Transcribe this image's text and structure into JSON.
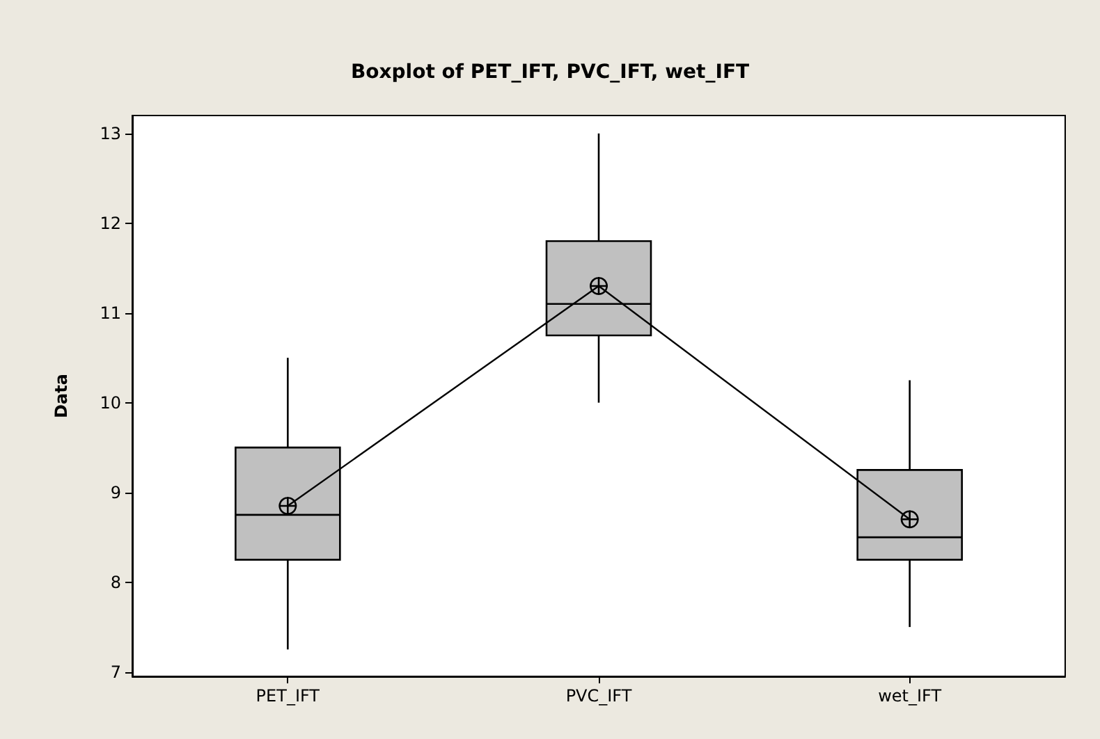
{
  "chart_data": {
    "type": "box",
    "title": "Boxplot of PET_IFT, PVC_IFT, wet_IFT",
    "ylabel": "Data",
    "categories": [
      "PET_IFT",
      "PVC_IFT",
      "wet_IFT"
    ],
    "color": "#c0c0c0",
    "boxes": [
      {
        "low": 7.25,
        "q1": 8.25,
        "median": 8.75,
        "q3": 9.5,
        "high": 10.5
      },
      {
        "low": 10,
        "q1": 10.75,
        "median": 11.1,
        "q3": 11.8,
        "high": 13
      },
      {
        "low": 7.5,
        "q1": 8.25,
        "median": 8.5,
        "q3": 9.25,
        "high": 10.25
      }
    ],
    "series": [
      {
        "type": "line",
        "color": "#000000",
        "values": [
          8.85,
          11.3,
          8.7
        ]
      }
    ],
    "marker": "circle",
    "ylim": [
      6.95,
      13.2
    ],
    "yticks": [
      7,
      8,
      9,
      10,
      11,
      12,
      13
    ],
    "grid": false
  }
}
